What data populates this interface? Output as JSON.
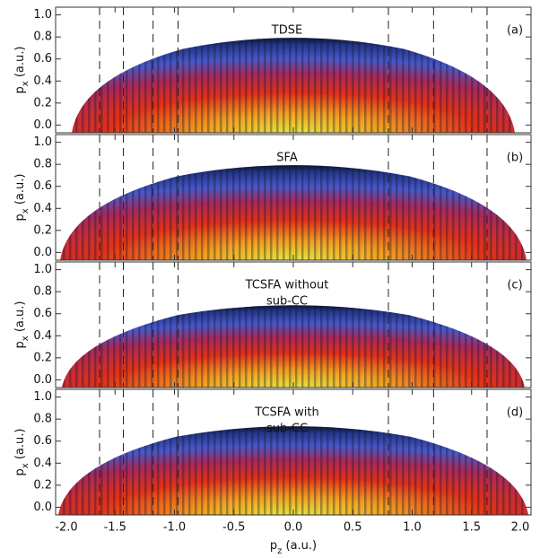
{
  "chart_data": {
    "type": "heatmap",
    "xlim": [
      -2.0,
      2.0
    ],
    "xticks": [
      {
        "value": -2.0,
        "label": "-2.0"
      },
      {
        "value": -1.5,
        "label": "-1.5"
      },
      {
        "value": -1.0,
        "label": "-1.0"
      },
      {
        "value": -0.5,
        "label": "-0.5"
      },
      {
        "value": 0.0,
        "label": "0.0"
      },
      {
        "value": 0.5,
        "label": "0.5"
      },
      {
        "value": 1.0,
        "label": "1.0"
      },
      {
        "value": 1.5,
        "label": "1.5"
      },
      {
        "value": 2.0,
        "label": "2.0"
      }
    ],
    "xlabel": [
      "p",
      "z",
      " (a.u.)"
    ],
    "ylim": [
      -0.07,
      1.07
    ],
    "yticks": [
      {
        "value": 0.0,
        "label": "0.0"
      },
      {
        "value": 0.2,
        "label": "0.2"
      },
      {
        "value": 0.4,
        "label": "0.4"
      },
      {
        "value": 0.6,
        "label": "0.6"
      },
      {
        "value": 0.8,
        "label": "0.8"
      },
      {
        "value": 1.0,
        "label": "1.0"
      }
    ],
    "ylabel": [
      "p",
      "x",
      " (a.u.)"
    ],
    "vlines": [
      -1.63,
      -1.43,
      -1.18,
      -0.97,
      0.8,
      1.18,
      1.63
    ],
    "panels": [
      {
        "title": [
          "TDSE"
        ],
        "tag": "(a)"
      },
      {
        "title": [
          "SFA"
        ],
        "tag": "(b)"
      },
      {
        "title": [
          "TCSFA without",
          "sub-CC"
        ],
        "tag": "(c)"
      },
      {
        "title": [
          "TCSFA with",
          "sub-CC"
        ],
        "tag": "(d)"
      }
    ]
  }
}
